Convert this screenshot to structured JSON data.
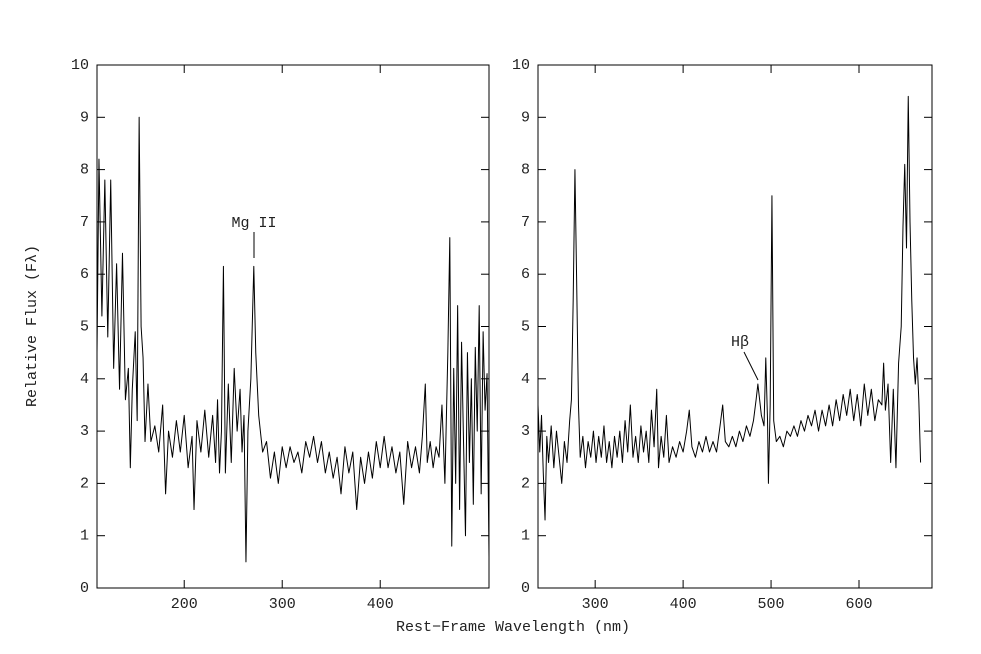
{
  "xlabel": "Rest−Frame Wavelength (nm)",
  "ylabel": "Relative Flux (Fλ)",
  "chart_data": [
    {
      "type": "line",
      "color": "#000000",
      "xlim": [
        111,
        511
      ],
      "ylim": [
        0,
        10
      ],
      "xticks": [
        200,
        300,
        400
      ],
      "yticks": [
        0,
        1,
        2,
        3,
        4,
        5,
        6,
        7,
        8,
        9,
        10
      ],
      "annotations": [
        "Mg II"
      ],
      "x": [
        111,
        113,
        116,
        119,
        122,
        125,
        128,
        131,
        134,
        137,
        140,
        143,
        145,
        147,
        150,
        152,
        154,
        156,
        158,
        160,
        163,
        166,
        170,
        174,
        178,
        181,
        184,
        188,
        192,
        196,
        200,
        204,
        208,
        210,
        213,
        217,
        221,
        225,
        229,
        232,
        234,
        236,
        238,
        240,
        242,
        245,
        248,
        251,
        254,
        257,
        259,
        261,
        263,
        265,
        268,
        271,
        273,
        276,
        280,
        284,
        288,
        292,
        296,
        300,
        304,
        308,
        312,
        316,
        320,
        324,
        328,
        332,
        336,
        340,
        344,
        348,
        352,
        356,
        360,
        364,
        368,
        372,
        376,
        380,
        384,
        388,
        392,
        396,
        400,
        404,
        408,
        412,
        416,
        420,
        424,
        428,
        432,
        436,
        440,
        443,
        446,
        448,
        451,
        454,
        457,
        460,
        463,
        466,
        469,
        471,
        473,
        475,
        477,
        479,
        481,
        483,
        485,
        487,
        489,
        491,
        493,
        495,
        497,
        499,
        501,
        503,
        505,
        507,
        509,
        511
      ],
      "values": [
        4.5,
        8.2,
        5.2,
        7.8,
        4.8,
        7.8,
        4.2,
        6.2,
        3.8,
        6.4,
        3.6,
        4.2,
        2.3,
        3.8,
        4.9,
        3.2,
        9.0,
        5.0,
        4.4,
        2.8,
        3.9,
        2.8,
        3.1,
        2.6,
        3.5,
        1.8,
        3.0,
        2.5,
        3.2,
        2.6,
        3.3,
        2.3,
        2.9,
        1.5,
        3.2,
        2.6,
        3.4,
        2.5,
        3.3,
        2.4,
        3.6,
        2.2,
        3.0,
        6.15,
        2.2,
        3.9,
        2.4,
        4.2,
        3.0,
        3.8,
        2.6,
        3.3,
        0.5,
        3.0,
        4.0,
        6.15,
        4.5,
        3.3,
        2.6,
        2.8,
        2.1,
        2.6,
        2.0,
        2.7,
        2.3,
        2.7,
        2.4,
        2.6,
        2.2,
        2.8,
        2.5,
        2.9,
        2.4,
        2.8,
        2.2,
        2.6,
        2.1,
        2.5,
        1.8,
        2.7,
        2.2,
        2.6,
        1.5,
        2.5,
        2.0,
        2.6,
        2.1,
        2.8,
        2.3,
        2.9,
        2.3,
        2.7,
        2.2,
        2.6,
        1.6,
        2.8,
        2.3,
        2.7,
        2.2,
        2.9,
        3.9,
        2.4,
        2.8,
        2.3,
        2.7,
        2.5,
        3.5,
        2.0,
        4.5,
        6.7,
        0.8,
        4.2,
        2.0,
        5.4,
        1.5,
        4.7,
        2.8,
        1.0,
        4.5,
        2.4,
        4.0,
        1.6,
        4.6,
        3.0,
        5.4,
        1.8,
        4.9,
        3.4,
        4.1,
        0.6
      ]
    },
    {
      "type": "line",
      "color": "#000000",
      "xlim": [
        235,
        683
      ],
      "ylim": [
        0,
        10
      ],
      "xticks": [
        300,
        400,
        500,
        600
      ],
      "yticks": [
        0,
        1,
        2,
        3,
        4,
        5,
        6,
        7,
        8,
        9,
        10
      ],
      "annotations": [
        "Hβ"
      ],
      "x": [
        235,
        237,
        239,
        241,
        243,
        245,
        247,
        250,
        253,
        256,
        259,
        262,
        265,
        268,
        271,
        273,
        275,
        277,
        279,
        281,
        283,
        286,
        289,
        292,
        295,
        298,
        301,
        304,
        307,
        310,
        313,
        316,
        319,
        322,
        325,
        328,
        331,
        334,
        337,
        340,
        343,
        346,
        349,
        352,
        355,
        358,
        361,
        364,
        367,
        370,
        372,
        375,
        378,
        381,
        384,
        388,
        392,
        396,
        400,
        404,
        407,
        410,
        414,
        418,
        422,
        426,
        430,
        434,
        438,
        442,
        445,
        448,
        452,
        456,
        460,
        464,
        468,
        472,
        476,
        480,
        483,
        485,
        487,
        489,
        492,
        494,
        496,
        497,
        499,
        501,
        503,
        506,
        510,
        514,
        518,
        522,
        526,
        530,
        534,
        538,
        542,
        546,
        550,
        554,
        558,
        562,
        566,
        570,
        574,
        578,
        582,
        586,
        590,
        594,
        598,
        602,
        606,
        610,
        614,
        618,
        622,
        626,
        628,
        630,
        633,
        636,
        639,
        642,
        645,
        648,
        650,
        652,
        654,
        656,
        658,
        660,
        662,
        664,
        666,
        668,
        670
      ],
      "values": [
        3.5,
        2.6,
        3.3,
        2.2,
        1.3,
        2.9,
        2.4,
        3.1,
        2.3,
        3.0,
        2.5,
        2.0,
        2.8,
        2.4,
        3.2,
        3.6,
        5.5,
        8.0,
        5.8,
        3.5,
        2.5,
        2.9,
        2.3,
        2.8,
        2.5,
        3.0,
        2.4,
        2.9,
        2.5,
        3.1,
        2.4,
        2.8,
        2.3,
        2.9,
        2.5,
        3.0,
        2.4,
        3.2,
        2.6,
        3.5,
        2.5,
        2.9,
        2.4,
        3.1,
        2.6,
        3.0,
        2.4,
        3.4,
        2.7,
        3.8,
        2.3,
        2.9,
        2.5,
        3.3,
        2.4,
        2.7,
        2.5,
        2.8,
        2.6,
        3.0,
        3.4,
        2.7,
        2.5,
        2.8,
        2.6,
        2.9,
        2.6,
        2.8,
        2.6,
        3.1,
        3.5,
        2.8,
        2.7,
        2.9,
        2.7,
        3.0,
        2.8,
        3.1,
        2.9,
        3.2,
        3.6,
        3.9,
        3.6,
        3.3,
        3.1,
        4.4,
        3.2,
        2.0,
        3.5,
        7.5,
        3.2,
        2.8,
        2.9,
        2.7,
        3.0,
        2.9,
        3.1,
        2.9,
        3.2,
        3.0,
        3.3,
        3.1,
        3.4,
        3.0,
        3.4,
        3.1,
        3.5,
        3.1,
        3.6,
        3.2,
        3.7,
        3.3,
        3.8,
        3.2,
        3.7,
        3.1,
        3.9,
        3.3,
        3.8,
        3.2,
        3.6,
        3.5,
        4.3,
        3.4,
        3.9,
        2.4,
        3.8,
        2.3,
        4.3,
        5.0,
        6.9,
        8.1,
        6.5,
        9.4,
        7.0,
        5.5,
        4.4,
        3.9,
        4.4,
        3.6,
        2.4
      ]
    }
  ]
}
